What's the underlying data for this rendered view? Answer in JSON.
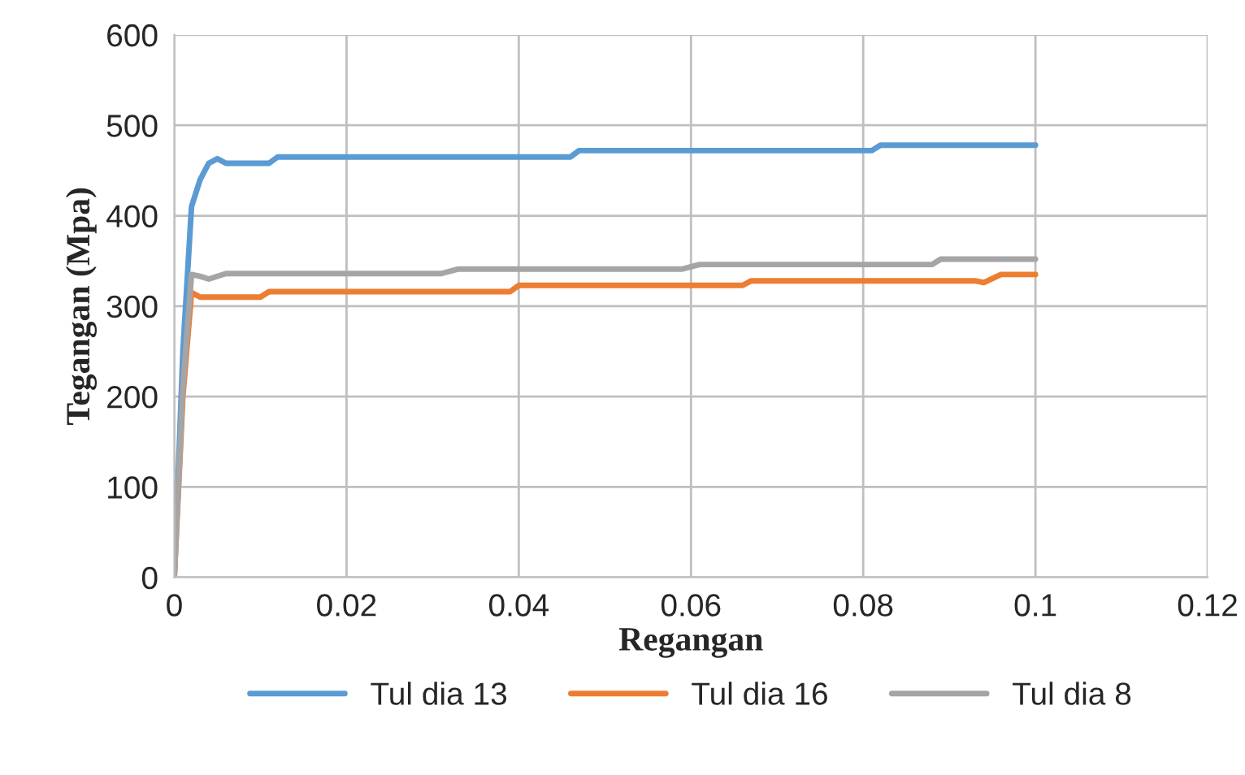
{
  "chart_data": {
    "type": "line",
    "xlabel": "Regangan",
    "ylabel": "Tegangan (Mpa)",
    "xlim": [
      0,
      0.12
    ],
    "xticks": [
      {
        "value": 0,
        "label": "0"
      },
      0.02,
      0.04,
      0.06,
      0.08,
      0.1,
      0.12
    ],
    "ylim": [
      0,
      600
    ],
    "yticks": [
      0,
      100,
      200,
      300,
      400,
      500,
      600
    ],
    "grid": true,
    "legend": "bottom",
    "marker": "none",
    "line_style": "solid",
    "series": [
      {
        "name": "Tul dia 13",
        "color": "#5b9bd5",
        "x": [
          0,
          0.001,
          0.002,
          0.003,
          0.004,
          0.005,
          0.006,
          0.011,
          0.012,
          0.046,
          0.047,
          0.081,
          0.082,
          0.1
        ],
        "values": [
          0,
          250,
          410,
          440,
          458,
          463,
          458,
          458,
          465,
          465,
          472,
          472,
          478,
          478
        ]
      },
      {
        "name": "Tul dia 16",
        "color": "#ed7d31",
        "x": [
          0,
          0.001,
          0.002,
          0.003,
          0.01,
          0.011,
          0.039,
          0.04,
          0.066,
          0.067,
          0.093,
          0.094,
          0.096,
          0.1
        ],
        "values": [
          0,
          200,
          315,
          310,
          310,
          316,
          316,
          323,
          323,
          328,
          328,
          326,
          335,
          335
        ]
      },
      {
        "name": "Tul dia 8",
        "color": "#a5a5a5",
        "x": [
          0,
          0.001,
          0.002,
          0.003,
          0.004,
          0.006,
          0.031,
          0.033,
          0.059,
          0.061,
          0.088,
          0.089,
          0.1
        ],
        "values": [
          0,
          210,
          335,
          333,
          330,
          336,
          336,
          341,
          341,
          346,
          346,
          352,
          352
        ]
      }
    ]
  }
}
